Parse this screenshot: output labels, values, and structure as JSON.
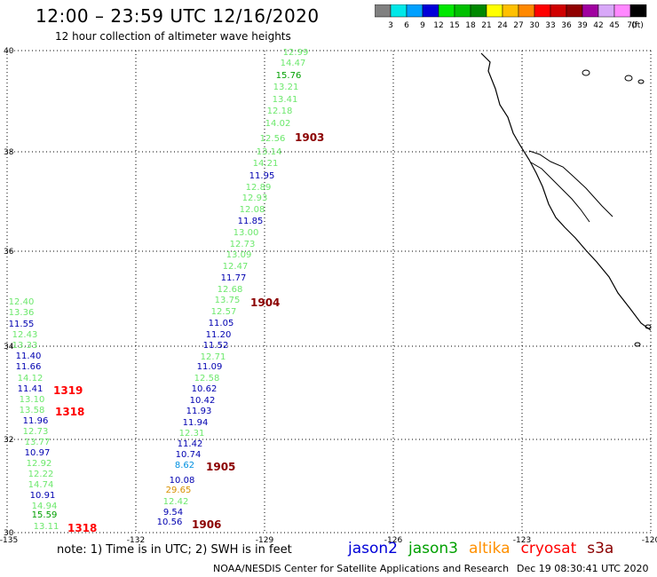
{
  "header": {
    "title": "12:00  –  23:59  UTC  12/16/2020",
    "subtitle": "12 hour collection of altimeter wave heights"
  },
  "colorbar": {
    "unit": "(ft)",
    "labels": [
      "3",
      "6",
      "9",
      "12",
      "15",
      "18",
      "21",
      "24",
      "27",
      "30",
      "33",
      "36",
      "39",
      "42",
      "45",
      "70"
    ],
    "colors": [
      "#808080",
      "#00e8e8",
      "#00a0ff",
      "#0000d8",
      "#00e800",
      "#00c000",
      "#008800",
      "#ffff00",
      "#ffc000",
      "#ff8800",
      "#ff0000",
      "#d00000",
      "#900000",
      "#a000a0",
      "#d8a8f8",
      "#ff88ff",
      "#000000"
    ]
  },
  "axes": {
    "lon_labels": [
      "-135",
      "-132",
      "-129",
      "-126",
      "-123",
      "-120"
    ],
    "lat_labels": [
      "40",
      "38",
      "36",
      "34",
      "32",
      "30"
    ]
  },
  "track_labels": [
    {
      "text": "1903",
      "color": "#8b0000"
    },
    {
      "text": "1904",
      "color": "#8b0000"
    },
    {
      "text": "1905",
      "color": "#8b0000"
    },
    {
      "text": "1906",
      "color": "#8b0000"
    },
    {
      "text": "1319",
      "color": "#ff0000"
    },
    {
      "text": "1318",
      "color": "#ff0000"
    },
    {
      "text": "1318",
      "color": "#ff0000"
    }
  ],
  "observations": [
    {
      "v": "12.99",
      "c": "#6ce86c"
    },
    {
      "v": "14.47",
      "c": "#6ce86c"
    },
    {
      "v": "15.76",
      "c": "#00a000"
    },
    {
      "v": "13.21",
      "c": "#6ce86c"
    },
    {
      "v": "13.41",
      "c": "#6ce86c"
    },
    {
      "v": "12.18",
      "c": "#6ce86c"
    },
    {
      "v": "14.02",
      "c": "#6ce86c"
    },
    {
      "v": "12.56",
      "c": "#6ce86c"
    },
    {
      "v": "13.14",
      "c": "#6ce86c"
    },
    {
      "v": "14.21",
      "c": "#6ce86c"
    },
    {
      "v": "11.95",
      "c": "#0000b0"
    },
    {
      "v": "12.89",
      "c": "#6ce86c"
    },
    {
      "v": "12.93",
      "c": "#6ce86c"
    },
    {
      "v": "12.08",
      "c": "#6ce86c"
    },
    {
      "v": "11.85",
      "c": "#0000b0"
    },
    {
      "v": "13.00",
      "c": "#6ce86c"
    },
    {
      "v": "12.73",
      "c": "#6ce86c"
    },
    {
      "v": "13.09",
      "c": "#6ce86c"
    },
    {
      "v": "12.47",
      "c": "#6ce86c"
    },
    {
      "v": "11.77",
      "c": "#0000b0"
    },
    {
      "v": "12.68",
      "c": "#6ce86c"
    },
    {
      "v": "13.75",
      "c": "#6ce86c"
    },
    {
      "v": "12.57",
      "c": "#6ce86c"
    },
    {
      "v": "11.05",
      "c": "#0000b0"
    },
    {
      "v": "11.20",
      "c": "#0000b0"
    },
    {
      "v": "11.52",
      "c": "#0000b0"
    },
    {
      "v": "12.71",
      "c": "#6ce86c"
    },
    {
      "v": "11.09",
      "c": "#0000b0"
    },
    {
      "v": "12.58",
      "c": "#6ce86c"
    },
    {
      "v": "10.62",
      "c": "#0000b0"
    },
    {
      "v": "10.42",
      "c": "#0000b0"
    },
    {
      "v": "11.93",
      "c": "#0000b0"
    },
    {
      "v": "11.94",
      "c": "#0000b0"
    },
    {
      "v": "12.31",
      "c": "#6ce86c"
    },
    {
      "v": "11.42",
      "c": "#0000b0"
    },
    {
      "v": "10.74",
      "c": "#0000b0"
    },
    {
      "v": "8.62",
      "c": "#0090e0"
    },
    {
      "v": "10.08",
      "c": "#0000b0"
    },
    {
      "v": "29.65",
      "c": "#d89000"
    },
    {
      "v": "12.42",
      "c": "#6ce86c"
    },
    {
      "v": "9.54",
      "c": "#0000b0"
    },
    {
      "v": "10.56",
      "c": "#0000b0"
    },
    {
      "v": "12.40",
      "c": "#6ce86c"
    },
    {
      "v": "13.36",
      "c": "#6ce86c"
    },
    {
      "v": "11.55",
      "c": "#0000b0"
    },
    {
      "v": "12.43",
      "c": "#6ce86c"
    },
    {
      "v": "13.33",
      "c": "#6ce86c"
    },
    {
      "v": "11.40",
      "c": "#0000b0"
    },
    {
      "v": "11.66",
      "c": "#0000b0"
    },
    {
      "v": "14.12",
      "c": "#6ce86c"
    },
    {
      "v": "11.41",
      "c": "#0000b0"
    },
    {
      "v": "13.10",
      "c": "#6ce86c"
    },
    {
      "v": "13.58",
      "c": "#6ce86c"
    },
    {
      "v": "11.96",
      "c": "#0000b0"
    },
    {
      "v": "12.73",
      "c": "#6ce86c"
    },
    {
      "v": "13.77",
      "c": "#6ce86c"
    },
    {
      "v": "10.97",
      "c": "#0000b0"
    },
    {
      "v": "12.92",
      "c": "#6ce86c"
    },
    {
      "v": "12.22",
      "c": "#6ce86c"
    },
    {
      "v": "14.74",
      "c": "#6ce86c"
    },
    {
      "v": "10.91",
      "c": "#0000b0"
    },
    {
      "v": "14.94",
      "c": "#6ce86c"
    },
    {
      "v": "15.59",
      "c": "#00a000"
    },
    {
      "v": "13.11",
      "c": "#6ce86c"
    }
  ],
  "footer": {
    "note": "note:  1)  Time is in UTC;  2)  SWH is in feet",
    "credit": "NOAA/NESDIS Center for Satellite Applications and Research",
    "stamp": "Dec 19 08:30:41 UTC 2020"
  },
  "legend": [
    {
      "name": "jason2",
      "color": "#0000d8"
    },
    {
      "name": "jason3",
      "color": "#00a000"
    },
    {
      "name": "altika",
      "color": "#ff9000"
    },
    {
      "name": "cryosat",
      "color": "#ff0000"
    },
    {
      "name": "s3a",
      "color": "#8b0000"
    }
  ]
}
